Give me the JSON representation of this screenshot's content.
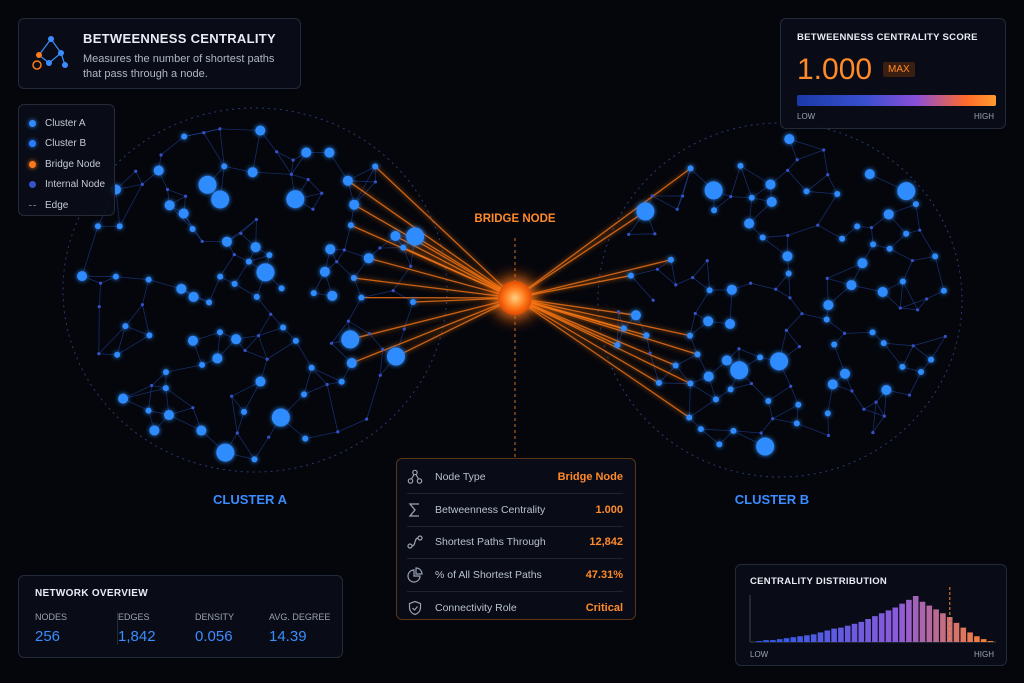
{
  "header": {
    "title": "BETWEENNESS CENTRALITY",
    "description": "Measures the number of shortest paths that pass through a node."
  },
  "legend": [
    "Cluster A",
    "Cluster B",
    "Bridge Node",
    "Internal Node",
    "Edge"
  ],
  "score": {
    "title": "BETWEENNESS CENTRALITY SCORE",
    "value": "1.000",
    "badge": "MAX",
    "low": "LOW",
    "high": "HIGH"
  },
  "labels": {
    "bridge": "BRIDGE NODE",
    "cluster_a": "CLUSTER A",
    "cluster_b": "CLUSTER B"
  },
  "node_details": [
    {
      "label": "Node Type",
      "value": "Bridge Node"
    },
    {
      "label": "Betweenness Centrality",
      "value": "1.000"
    },
    {
      "label": "Shortest Paths Through",
      "value": "12,842"
    },
    {
      "label": "% of All Shortest Paths",
      "value": "47.31%"
    },
    {
      "label": "Connectivity Role",
      "value": "Critical"
    }
  ],
  "overview": {
    "title": "NETWORK OVERVIEW",
    "stats": [
      {
        "label": "NODES",
        "value": "256"
      },
      {
        "label": "EDGES",
        "value": "1,842"
      },
      {
        "label": "DENSITY",
        "value": "0.056"
      },
      {
        "label": "AVG. DEGREE",
        "value": "14.39"
      }
    ]
  },
  "distribution": {
    "title": "CENTRALITY DISTRIBUTION",
    "low": "LOW",
    "high": "HIGH",
    "values": [
      1,
      2,
      2,
      3,
      4,
      5,
      6,
      7,
      8,
      10,
      12,
      14,
      15,
      17,
      19,
      21,
      24,
      27,
      30,
      33,
      36,
      40,
      44,
      48,
      42,
      38,
      34,
      30,
      26,
      20,
      15,
      10,
      6,
      3,
      1
    ]
  }
}
